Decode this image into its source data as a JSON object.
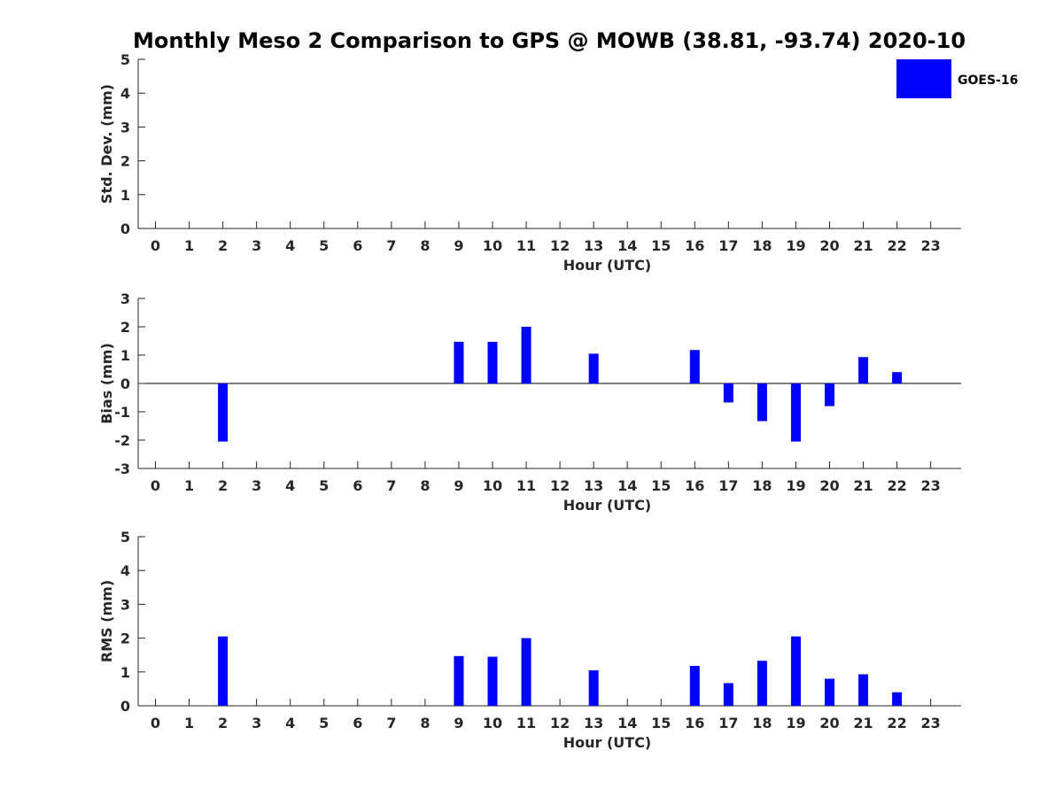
{
  "title": "Monthly Meso 2 Comparison to GPS @ MOWB (38.81, -93.74) 2020-10",
  "legend": {
    "label": "GOES-16",
    "color": "#0000ff",
    "placement": "top-right"
  },
  "bar_color": "#0000ff",
  "chart_data": [
    {
      "type": "bar",
      "ylabel": "Std. Dev. (mm)",
      "xlabel": "Hour (UTC)",
      "ylim": [
        0,
        5
      ],
      "yticks": [
        0,
        1,
        2,
        3,
        4,
        5
      ],
      "categories": [
        0,
        1,
        2,
        3,
        4,
        5,
        6,
        7,
        8,
        9,
        10,
        11,
        12,
        13,
        14,
        15,
        16,
        17,
        18,
        19,
        20,
        21,
        22,
        23
      ],
      "series": [
        {
          "name": "GOES-16",
          "values": [
            null,
            null,
            null,
            null,
            null,
            null,
            null,
            null,
            null,
            null,
            null,
            null,
            null,
            null,
            null,
            null,
            null,
            null,
            null,
            null,
            null,
            null,
            null,
            null
          ]
        }
      ],
      "zero_line": false
    },
    {
      "type": "bar",
      "ylabel": "Bias (mm)",
      "xlabel": "Hour (UTC)",
      "ylim": [
        -3,
        3
      ],
      "yticks": [
        -3,
        -2,
        -1,
        0,
        1,
        2,
        3
      ],
      "categories": [
        0,
        1,
        2,
        3,
        4,
        5,
        6,
        7,
        8,
        9,
        10,
        11,
        12,
        13,
        14,
        15,
        16,
        17,
        18,
        19,
        20,
        21,
        22,
        23
      ],
      "series": [
        {
          "name": "GOES-16",
          "values": [
            null,
            null,
            -2.05,
            null,
            null,
            null,
            null,
            null,
            null,
            1.47,
            1.47,
            2.0,
            null,
            1.05,
            null,
            null,
            1.18,
            -0.67,
            -1.33,
            -2.05,
            -0.8,
            0.93,
            0.4,
            null
          ]
        }
      ],
      "zero_line": true
    },
    {
      "type": "bar",
      "ylabel": "RMS (mm)",
      "xlabel": "Hour (UTC)",
      "ylim": [
        0,
        5
      ],
      "yticks": [
        0,
        1,
        2,
        3,
        4,
        5
      ],
      "categories": [
        0,
        1,
        2,
        3,
        4,
        5,
        6,
        7,
        8,
        9,
        10,
        11,
        12,
        13,
        14,
        15,
        16,
        17,
        18,
        19,
        20,
        21,
        22,
        23
      ],
      "series": [
        {
          "name": "GOES-16",
          "values": [
            null,
            null,
            2.05,
            null,
            null,
            null,
            null,
            null,
            null,
            1.47,
            1.45,
            2.0,
            null,
            1.05,
            null,
            null,
            1.18,
            0.67,
            1.33,
            2.05,
            0.8,
            0.93,
            0.4,
            null
          ]
        }
      ],
      "zero_line": false
    }
  ]
}
